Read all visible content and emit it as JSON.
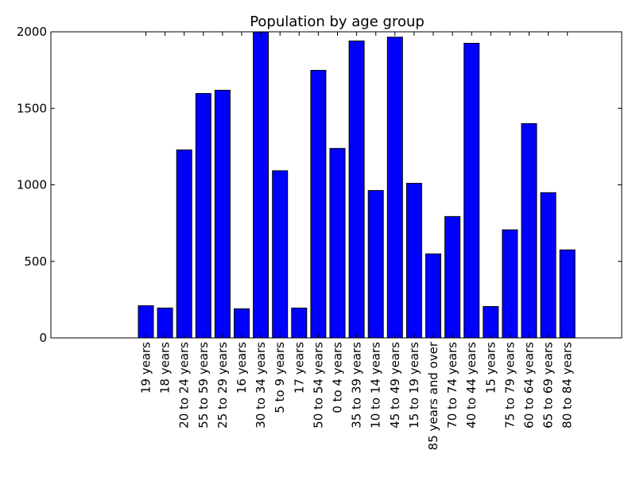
{
  "chart_data": {
    "type": "bar",
    "title": "Population by age group",
    "xlabel": "",
    "ylabel": "",
    "ylim": [
      0,
      2000
    ],
    "yticks": [
      0,
      500,
      1000,
      1500,
      2000
    ],
    "grid": false,
    "categories": [
      "19 years",
      "18 years",
      "20 to 24 years",
      "55 to 59 years",
      "25 to 29 years",
      "16 years",
      "30 to 34 years",
      "5 to 9 years",
      "17 years",
      "50 to 54 years",
      "0 to 4 years",
      "35 to 39 years",
      "10 to 14 years",
      "45 to 49 years",
      "15 to 19 years",
      "85 years and over",
      "70 to 74 years",
      "40 to 44 years",
      "15 years",
      "75 to 79 years",
      "60 to 64 years",
      "65 to 69 years",
      "80 to 84 years"
    ],
    "values": [
      210,
      195,
      1228,
      1597,
      1618,
      190,
      1998,
      1092,
      195,
      1748,
      1238,
      1940,
      963,
      1965,
      1010,
      549,
      793,
      1925,
      205,
      706,
      1400,
      949,
      575
    ],
    "colors": {
      "bar": "#0000ff",
      "bar_edge": "#000000",
      "axes": "#000000",
      "background": "#ffffff"
    }
  }
}
